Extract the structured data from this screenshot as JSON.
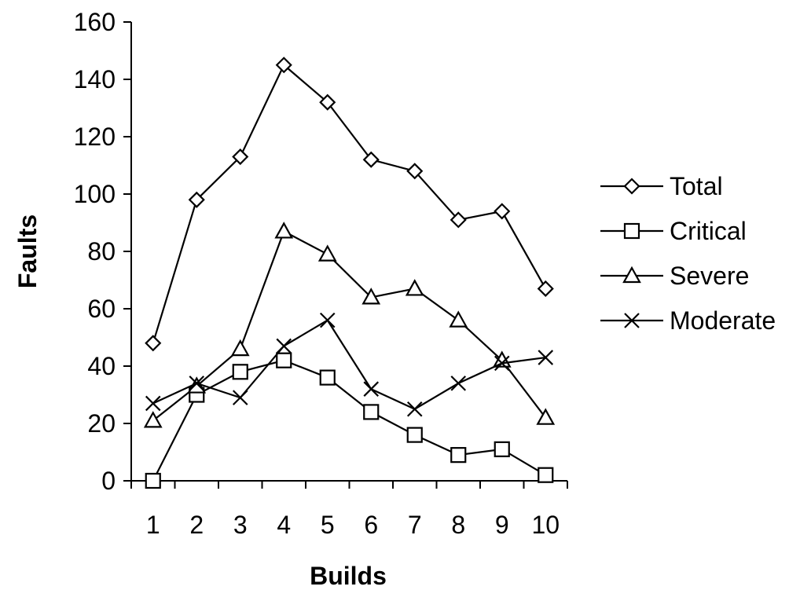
{
  "chart_data": {
    "type": "line",
    "title": "",
    "xlabel": "Builds",
    "ylabel": "Faults",
    "categories": [
      "1",
      "2",
      "3",
      "4",
      "5",
      "6",
      "7",
      "8",
      "9",
      "10"
    ],
    "ylim": [
      0,
      160
    ],
    "yticks": [
      "0",
      "20",
      "40",
      "60",
      "80",
      "100",
      "120",
      "140",
      "160"
    ],
    "grid": false,
    "legend_position": "right",
    "series": [
      {
        "name": "Total",
        "marker": "diamond",
        "values": [
          48,
          98,
          113,
          145,
          132,
          112,
          108,
          91,
          94,
          67
        ]
      },
      {
        "name": "Critical",
        "marker": "square",
        "values": [
          0,
          30,
          38,
          42,
          36,
          24,
          16,
          9,
          11,
          2
        ]
      },
      {
        "name": "Severe",
        "marker": "triangle",
        "values": [
          21,
          33,
          46,
          87,
          79,
          64,
          67,
          56,
          42,
          22
        ]
      },
      {
        "name": "Moderate",
        "marker": "x",
        "values": [
          27,
          34,
          29,
          47,
          56,
          32,
          25,
          34,
          41,
          43
        ]
      }
    ],
    "line_color": "#000000",
    "marker_fill": "#ffffff"
  }
}
